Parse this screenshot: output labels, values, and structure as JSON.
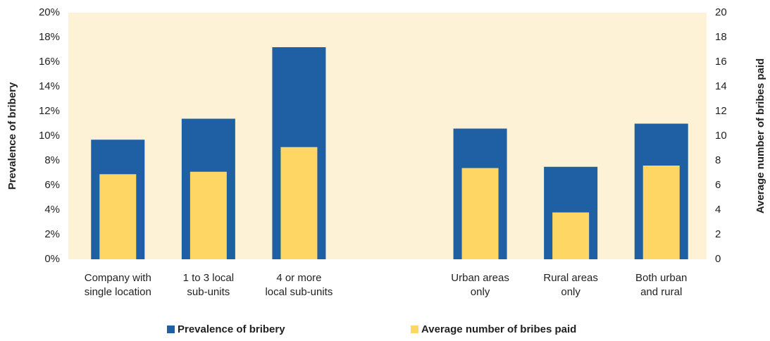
{
  "chart_data": {
    "type": "bar",
    "categories": [
      "Company with\nsingle location",
      "1 to 3 local\nsub-units",
      "4 or more\nlocal sub-units",
      null,
      "Urban areas\nonly",
      "Rural areas\nonly",
      "Both urban\nand rural"
    ],
    "series": [
      {
        "name": "Prevalence of bribery",
        "color": "#1f5fa3",
        "values": [
          9.7,
          11.4,
          17.2,
          null,
          10.6,
          7.5,
          11.0
        ]
      },
      {
        "name": "Average number of bribes paid",
        "color": "#fdd663",
        "axis": "y2",
        "values": [
          6.9,
          7.1,
          9.1,
          null,
          7.4,
          3.8,
          7.6
        ]
      }
    ],
    "ylabel": "Prevalence of bribery",
    "y2label": "Average number of bribes paid",
    "ylim": [
      0,
      20
    ],
    "yticks": [
      {
        "value": 0,
        "label": "0%"
      },
      {
        "value": 2,
        "label": "2%"
      },
      {
        "value": 4,
        "label": "4%"
      },
      {
        "value": 6,
        "label": "6%"
      },
      {
        "value": 8,
        "label": "8%"
      },
      {
        "value": 10,
        "label": "10%"
      },
      {
        "value": 12,
        "label": "12%"
      },
      {
        "value": 14,
        "label": "14%"
      },
      {
        "value": 16,
        "label": "16%"
      },
      {
        "value": 18,
        "label": "18%"
      },
      {
        "value": 20,
        "label": "20%"
      }
    ],
    "y2lim": [
      0,
      20
    ],
    "y2ticks": [
      0,
      2,
      4,
      6,
      8,
      10,
      12,
      14,
      16,
      18,
      20
    ],
    "grid": false,
    "legend": "bottom"
  }
}
